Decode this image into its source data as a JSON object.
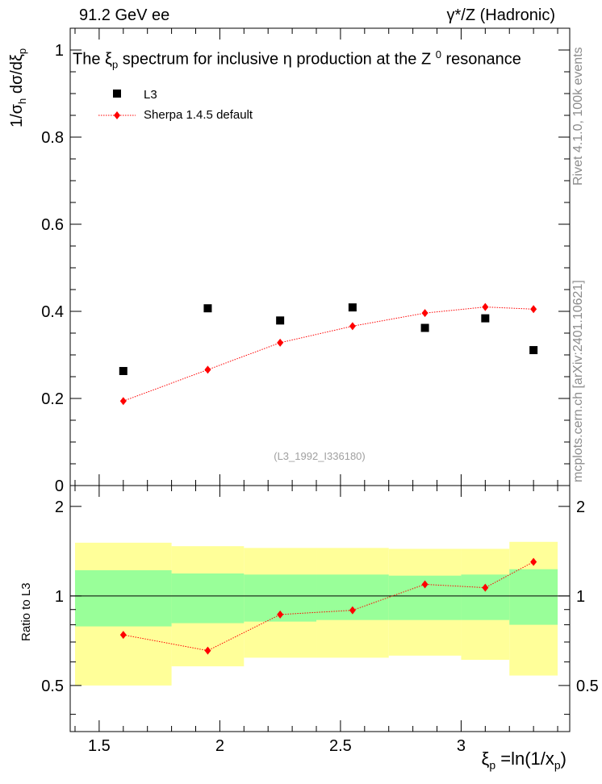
{
  "header": {
    "energy": "91.2 GeV ee",
    "process": "γ*/Z (Hadronic)"
  },
  "side_labels": {
    "rivet": "Rivet 4.1.0,  100k events",
    "mcplots": "mcplots.cern.ch [arXiv:2401.10621]"
  },
  "chart_data": [
    {
      "type": "scatter",
      "title": "The ξp spectrum for inclusive  η production at the Z 0 resonance",
      "title_parts": {
        "a": "The ξ",
        "b": "p",
        "c": " spectrum for inclusive  η production at the Z ",
        "d": "0",
        "e": " resonance"
      },
      "ylabel": "1/σh  dσ/dξp",
      "ylabel_parts": {
        "a": "1/σ",
        "b": "h",
        "c": "  dσ/dξ",
        "d": "p"
      },
      "ylim": [
        0,
        1.05
      ],
      "yticks": [
        "0",
        "0.2",
        "0.4",
        "0.6",
        "0.8",
        "1"
      ],
      "xlim": [
        1.38,
        3.45
      ],
      "watermark": "(L3_1992_I336180)",
      "series": [
        {
          "name": "L3",
          "color": "#000000",
          "x": [
            1.6,
            1.95,
            2.25,
            2.55,
            2.85,
            3.1,
            3.3
          ],
          "values": [
            0.263,
            0.407,
            0.379,
            0.409,
            0.362,
            0.384,
            0.311
          ]
        },
        {
          "name": "Sherpa 1.4.5 default",
          "color": "#ff0000",
          "x": [
            1.6,
            1.95,
            2.25,
            2.55,
            2.85,
            3.1,
            3.3
          ],
          "values": [
            0.194,
            0.266,
            0.328,
            0.366,
            0.396,
            0.41,
            0.405
          ]
        }
      ]
    },
    {
      "type": "line",
      "ylabel": "Ratio to L3",
      "ylim": [
        0.35,
        2.35
      ],
      "yticks": [
        "0.5",
        "1",
        "2"
      ],
      "xlim": [
        1.38,
        3.45
      ],
      "xticks": [
        "1.5",
        "2",
        "2.5",
        "3"
      ],
      "xlabel": "ξp =ln(1/xp)",
      "xlabel_parts": {
        "a": "ξ",
        "b": "p",
        "c": " =ln(1/x",
        "d": "p",
        "e": ")"
      },
      "bins": [
        {
          "low": 1.4,
          "high": 1.8,
          "green_low": 0.79,
          "green_high": 1.22,
          "yellow_low": 0.5,
          "yellow_high": 1.51
        },
        {
          "low": 1.8,
          "high": 2.1,
          "green_low": 0.81,
          "green_high": 1.19,
          "yellow_low": 0.58,
          "yellow_high": 1.47
        },
        {
          "low": 2.1,
          "high": 2.4,
          "green_low": 0.82,
          "green_high": 1.18,
          "yellow_low": 0.62,
          "yellow_high": 1.45
        },
        {
          "low": 2.4,
          "high": 2.7,
          "green_low": 0.83,
          "green_high": 1.18,
          "yellow_low": 0.62,
          "yellow_high": 1.45
        },
        {
          "low": 2.7,
          "high": 3.0,
          "green_low": 0.83,
          "green_high": 1.17,
          "yellow_low": 0.63,
          "yellow_high": 1.44
        },
        {
          "low": 3.0,
          "high": 3.2,
          "green_low": 0.83,
          "green_high": 1.18,
          "yellow_low": 0.61,
          "yellow_high": 1.44
        },
        {
          "low": 3.2,
          "high": 3.4,
          "green_low": 0.8,
          "green_high": 1.23,
          "yellow_low": 0.54,
          "yellow_high": 1.52
        }
      ],
      "series": [
        {
          "name": "Sherpa 1.4.5 default / L3",
          "color": "#ff0000",
          "x": [
            1.6,
            1.95,
            2.25,
            2.55,
            2.85,
            3.1,
            3.3
          ],
          "values": [
            0.74,
            0.655,
            0.866,
            0.895,
            1.094,
            1.066,
            1.302
          ]
        }
      ]
    }
  ]
}
